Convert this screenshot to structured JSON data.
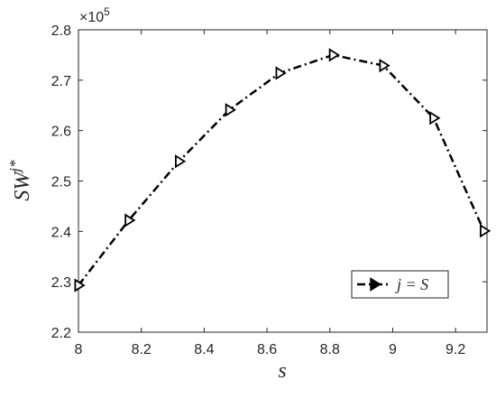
{
  "chart_data": {
    "type": "line",
    "x_label": "s",
    "y_label": "SW",
    "y_label_superscript": "j*",
    "y_multiplier": "×10",
    "y_multiplier_exponent": "5",
    "x": [
      8,
      8.16,
      8.32,
      8.48,
      8.64,
      8.81,
      8.97,
      9.13,
      9.29
    ],
    "series": [
      {
        "name": "j = S",
        "color": "#000000",
        "values": [
          2.293,
          2.422,
          2.539,
          2.641,
          2.714,
          2.75,
          2.729,
          2.625,
          2.401
        ]
      }
    ],
    "xlim": [
      8,
      9.3
    ],
    "xticks": [
      8,
      8.2,
      8.4,
      8.6,
      8.8,
      9,
      9.2
    ],
    "ylim": [
      2.2,
      2.8
    ],
    "yticks": [
      2.2,
      2.3,
      2.4,
      2.5,
      2.6,
      2.7,
      2.8
    ],
    "legend": "lower right",
    "grid": false
  }
}
